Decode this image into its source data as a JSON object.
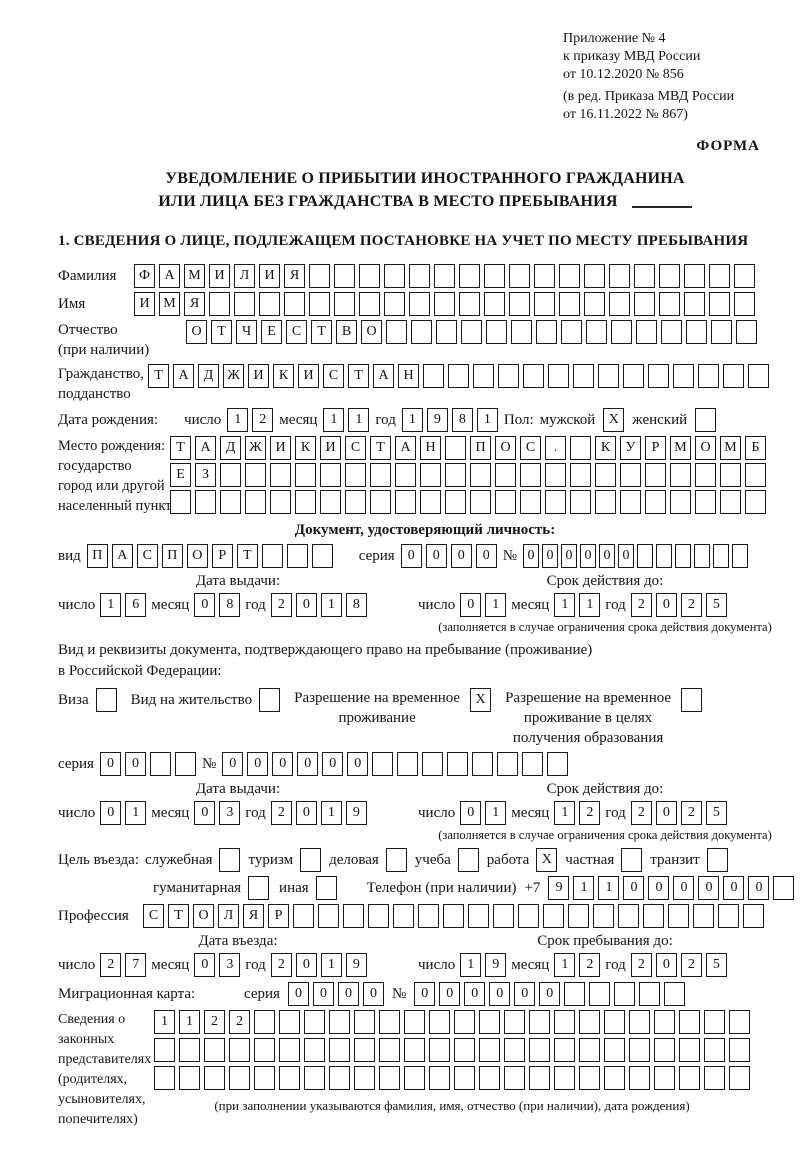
{
  "header": {
    "appendix_lines": [
      "Приложение № 4",
      "к приказу МВД России",
      "от 10.12.2020 № 856"
    ],
    "edition_lines": [
      "(в ред. Приказа МВД России",
      "от 16.11.2022 № 867)"
    ],
    "form_label": "ФОРМА"
  },
  "title": {
    "line1": "УВЕДОМЛЕНИЕ О ПРИБЫТИИ ИНОСТРАННОГО ГРАЖДАНИНА",
    "line2": "ИЛИ ЛИЦА БЕЗ ГРАЖДАНСТВА В МЕСТО ПРЕБЫВАНИЯ"
  },
  "section1_heading": "1. СВЕДЕНИЯ О ЛИЦЕ, ПОДЛЕЖАЩЕМ ПОСТАНОВКЕ НА УЧЕТ ПО МЕСТУ ПРЕБЫВАНИЯ",
  "person": {
    "surname": {
      "label": "Фамилия",
      "cells": {
        "text": "ФАМИЛИЯ",
        "total": 25
      }
    },
    "given_name": {
      "label": "Имя",
      "cells": {
        "text": "ИМЯ",
        "total": 25
      }
    },
    "patronymic": {
      "label_line1": "Отчество",
      "label_line2": "(при наличии)",
      "cells": {
        "text": "ОТЧЕСТВО",
        "total": 23
      }
    },
    "citizenship": {
      "label_line1": "Гражданство,",
      "label_line2": "подданство",
      "cells": {
        "text": "ТАДЖИКИСТАН",
        "total": 25
      }
    },
    "birth_date": {
      "label": "Дата рождения:",
      "day_label": "число",
      "day": {
        "text": "12",
        "total": 2
      },
      "month_label": "месяц",
      "month": {
        "text": "11",
        "total": 2
      },
      "year_label": "год",
      "year": {
        "text": "1981",
        "total": 4
      }
    },
    "sex": {
      "label": "Пол:",
      "male_label": "мужской",
      "male_checked": true,
      "female_label": "женский",
      "female_checked": false
    },
    "birth_place": {
      "label_lines": [
        "Место рождения:",
        "государство",
        "город или другой",
        "населенный пункт"
      ],
      "row1": {
        "text": "ТАДЖИКИСТАН ПОС. КУРМОМБ",
        "total": 24
      },
      "row2": {
        "text": "ЕЗ",
        "total": 24
      },
      "row3": {
        "text": "",
        "total": 24
      }
    }
  },
  "identity_doc": {
    "heading": "Документ, удостоверяющий личность:",
    "kind_label": "вид",
    "kind": {
      "text": "ПАСПОРТ",
      "total": 10
    },
    "series_label": "серия",
    "series": {
      "text": "0000",
      "total": 4
    },
    "number_label": "№",
    "number": {
      "text": "000000",
      "total": 12
    },
    "issue_heading": "Дата выдачи:",
    "issue": {
      "day_label": "число",
      "day": {
        "text": "16",
        "total": 2
      },
      "month_label": "месяц",
      "month": {
        "text": "08",
        "total": 2
      },
      "year_label": "год",
      "year": {
        "text": "2018",
        "total": 4
      }
    },
    "validity_heading": "Срок действия до:",
    "validity": {
      "day_label": "число",
      "day": {
        "text": "01",
        "total": 2
      },
      "month_label": "месяц",
      "month": {
        "text": "11",
        "total": 2
      },
      "year_label": "год",
      "year": {
        "text": "2025",
        "total": 4
      }
    },
    "validity_note": "(заполняется в случае ограничения срока действия документа)"
  },
  "residence_doc": {
    "intro_line1": "Вид и реквизиты документа, подтверждающего право на пребывание (проживание)",
    "intro_line2": "в Российской Федерации:",
    "visa": {
      "label": "Виза",
      "checked": false
    },
    "residence_permit": {
      "label": "Вид на жительство",
      "checked": false
    },
    "temp_permit": {
      "label_line1": "Разрешение на временное",
      "label_line2": "проживание",
      "checked": true
    },
    "edu_permit": {
      "label_line1": "Разрешение на временное",
      "label_line2": "проживание в целях",
      "label_line3": "получения образования",
      "checked": false
    },
    "series_label": "серия",
    "series": {
      "text": "00",
      "total": 4
    },
    "number_label": "№",
    "number": {
      "text": "000000",
      "total": 14
    },
    "issue_heading": "Дата выдачи:",
    "issue": {
      "day_label": "число",
      "day": {
        "text": "01",
        "total": 2
      },
      "month_label": "месяц",
      "month": {
        "text": "03",
        "total": 2
      },
      "year_label": "год",
      "year": {
        "text": "2019",
        "total": 4
      }
    },
    "validity_heading": "Срок действия до:",
    "validity": {
      "day_label": "число",
      "day": {
        "text": "01",
        "total": 2
      },
      "month_label": "месяц",
      "month": {
        "text": "12",
        "total": 2
      },
      "year_label": "год",
      "year": {
        "text": "2025",
        "total": 4
      }
    },
    "validity_note": "(заполняется в случае ограничения срока действия документа)"
  },
  "visit": {
    "purpose_label": "Цель въезда:",
    "options": [
      {
        "label": "служебная",
        "checked": false
      },
      {
        "label": "туризм",
        "checked": false
      },
      {
        "label": "деловая",
        "checked": false
      },
      {
        "label": "учеба",
        "checked": false
      },
      {
        "label": "работа",
        "checked": true
      },
      {
        "label": "частная",
        "checked": false
      },
      {
        "label": "транзит",
        "checked": false
      },
      {
        "label": "гуманитарная",
        "checked": false
      },
      {
        "label": "иная",
        "checked": false
      }
    ],
    "phone_label": "Телефон (при наличии)",
    "phone_prefix": "+7",
    "phone": {
      "text": "911000000",
      "total": 10
    },
    "profession": {
      "label": "Профессия",
      "cells": {
        "text": "СТОЛЯР",
        "total": 25
      }
    }
  },
  "entry": {
    "date_heading": "Дата въезда:",
    "date": {
      "day_label": "число",
      "day": {
        "text": "27",
        "total": 2
      },
      "month_label": "месяц",
      "month": {
        "text": "03",
        "total": 2
      },
      "year_label": "год",
      "year": {
        "text": "2019",
        "total": 4
      }
    },
    "stay_heading": "Срок пребывания до:",
    "stay": {
      "day_label": "число",
      "day": {
        "text": "19",
        "total": 2
      },
      "month_label": "месяц",
      "month": {
        "text": "12",
        "total": 2
      },
      "year_label": "год",
      "year": {
        "text": "2025",
        "total": 4
      }
    }
  },
  "migration_card": {
    "label": "Миграционная карта:",
    "series_label": "серия",
    "series": {
      "text": "0000",
      "total": 4
    },
    "number_label": "№",
    "number": {
      "text": "000000",
      "total": 11
    }
  },
  "representatives": {
    "label_lines": [
      "Сведения о",
      "законных",
      "представителях",
      "(родителях,",
      "усыновителях,",
      "попечителях)"
    ],
    "row1": {
      "text": "1122",
      "total": 24
    },
    "row2": {
      "text": "",
      "total": 24
    },
    "row3": {
      "text": "",
      "total": 24
    },
    "note": "(при заполнении указываются фамилия, имя, отчество (при наличии), дата рождения)"
  }
}
